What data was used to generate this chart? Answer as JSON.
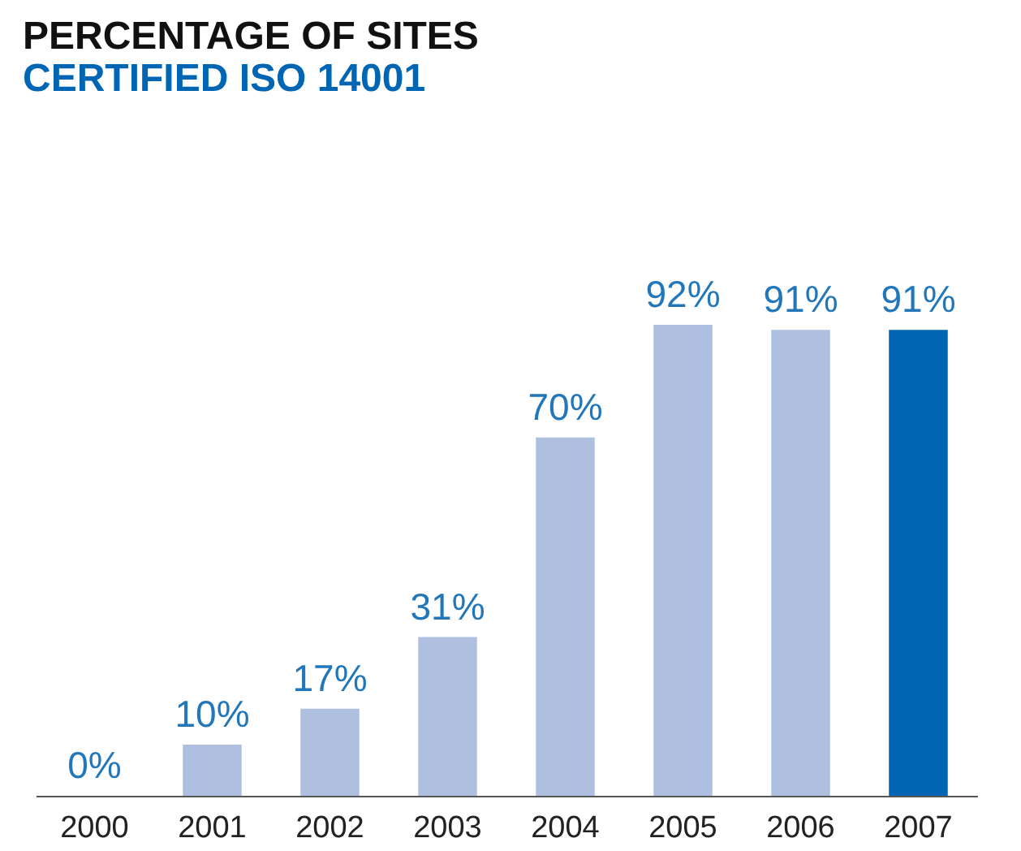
{
  "chart_data": {
    "type": "bar",
    "title": "PERCENTAGE OF SITES",
    "subtitle": "CERTIFIED ISO 14001",
    "categories": [
      "2000",
      "2001",
      "2002",
      "2003",
      "2004",
      "2005",
      "2006",
      "2007"
    ],
    "values": [
      0,
      10,
      17,
      31,
      70,
      92,
      91,
      91
    ],
    "colors": [
      "#aebfe0",
      "#aebfe0",
      "#aebfe0",
      "#aebfe0",
      "#aebfe0",
      "#aebfe0",
      "#aebfe0",
      "#0066b3"
    ],
    "value_labels": [
      "0%",
      "10%",
      "17%",
      "31%",
      "70%",
      "92%",
      "91%",
      "91%"
    ],
    "tick_labels": "x"
  }
}
